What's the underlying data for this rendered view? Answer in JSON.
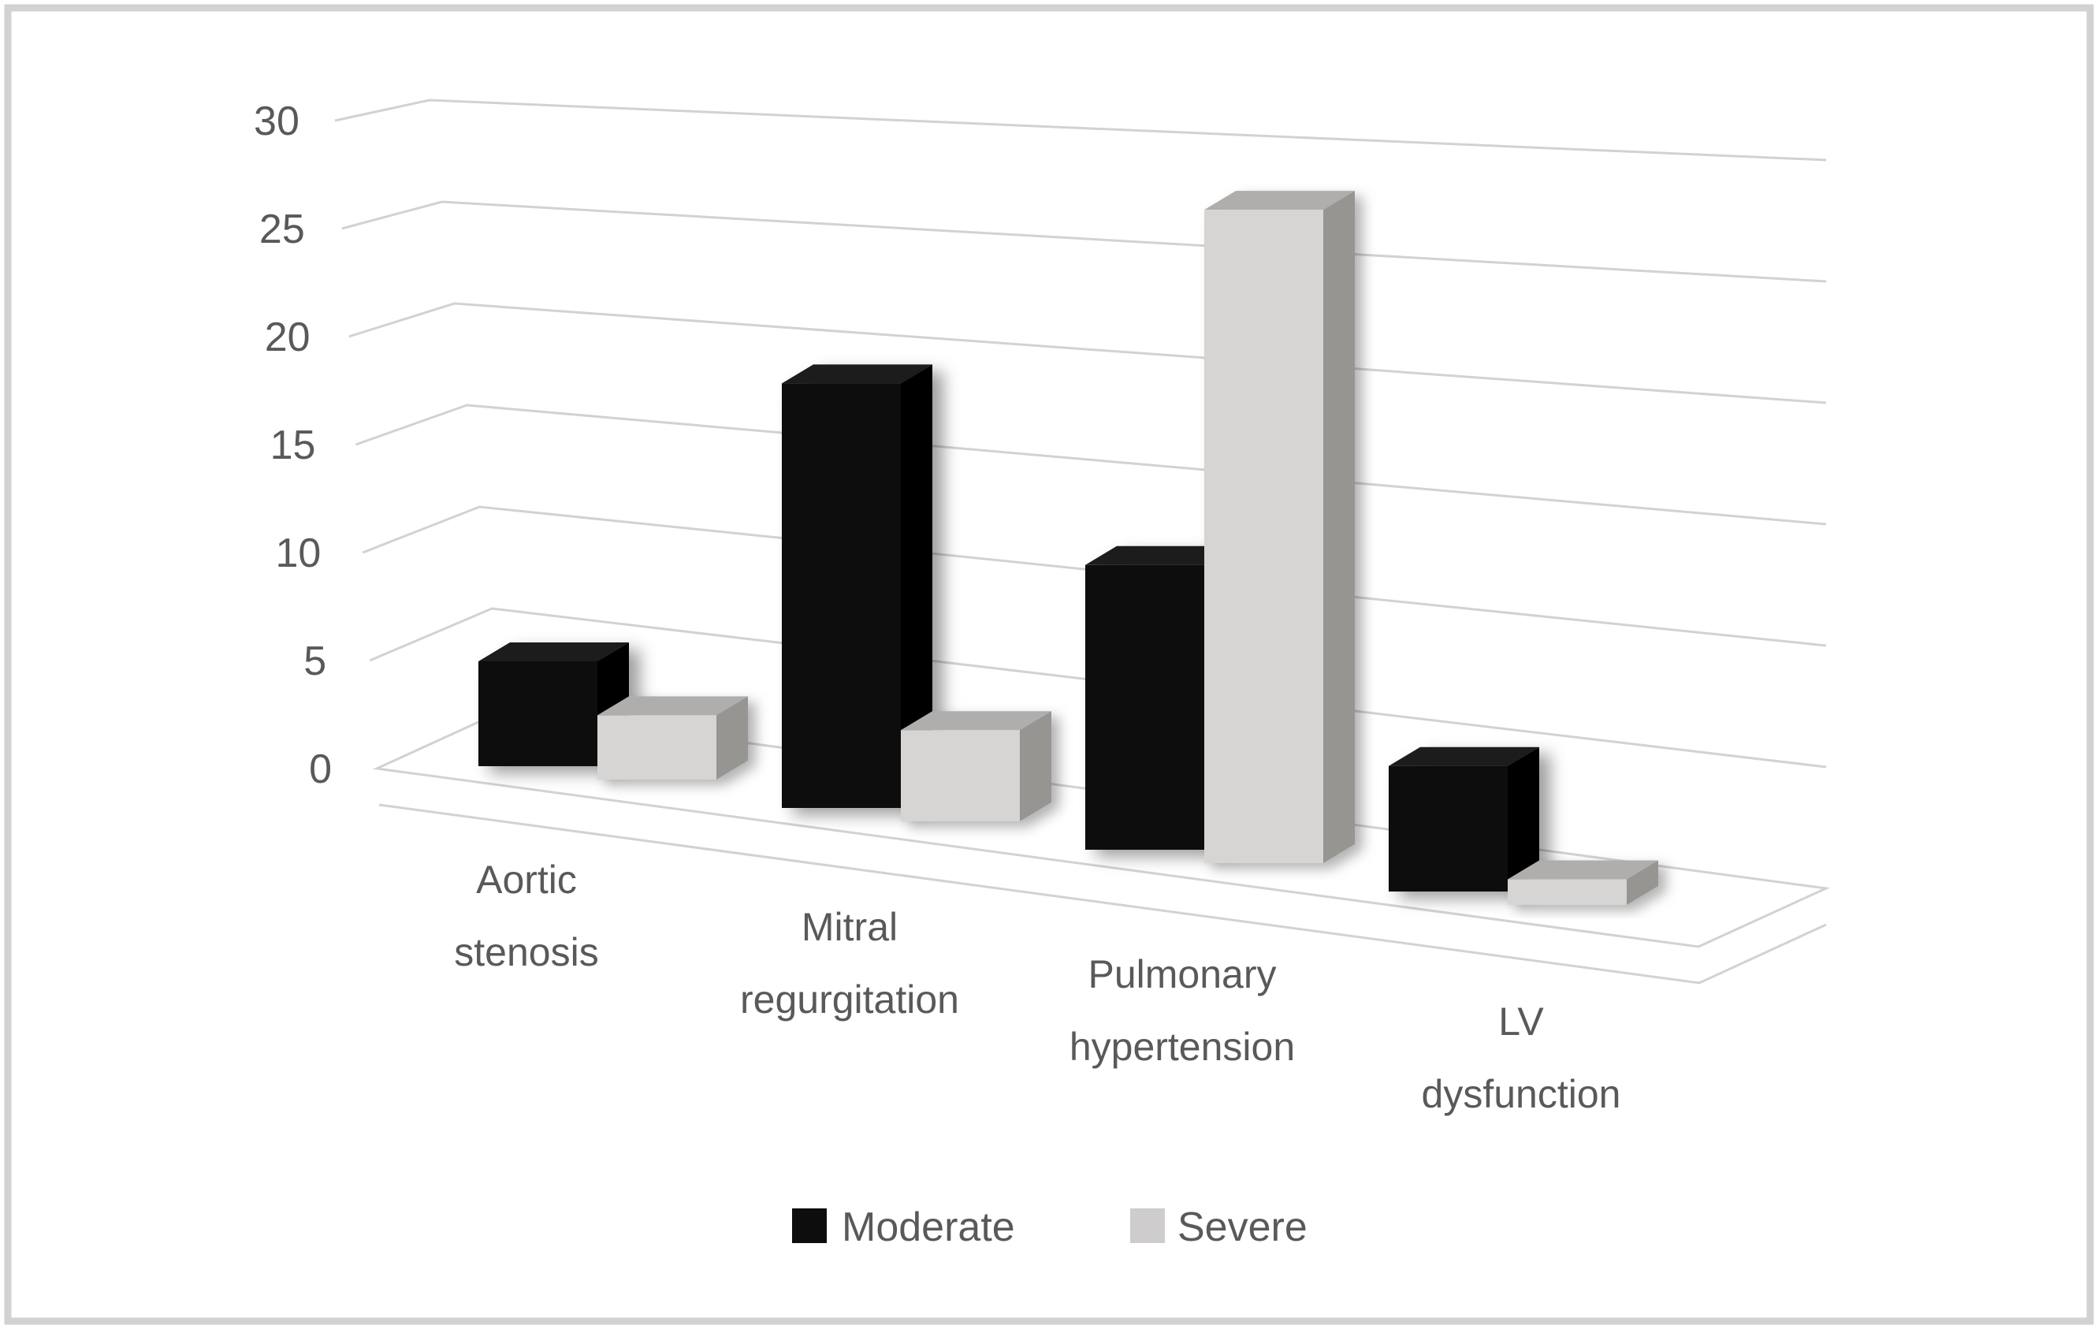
{
  "figure": {
    "background": "#ffffff",
    "border_color": "#d2d2d2",
    "text_color": "#595959",
    "gridline_color": "#d2d2d2"
  },
  "chart_data": {
    "type": "bar",
    "style": "3d-clustered-column",
    "title": "",
    "xlabel": "",
    "ylabel": "",
    "categories": [
      "Aortic stenosis",
      "Mitral regurgitation",
      "Pulmonary hypertension",
      "LV dysfunction"
    ],
    "category_label_lines": [
      [
        "Aortic",
        "stenosis"
      ],
      [
        "Mitral",
        "regurgitation"
      ],
      [
        "Pulmonary",
        "hypertension"
      ],
      [
        "LV",
        "dysfunction"
      ]
    ],
    "series": [
      {
        "name": "Moderate",
        "values": [
          5,
          19,
          12,
          5
        ],
        "color_front": "#0a0a0a",
        "color_top": "#1f1f1f",
        "color_side": "#000000"
      },
      {
        "name": "Severe",
        "values": [
          3,
          4,
          27,
          1
        ],
        "color_front": "#d7d5d3",
        "color_top": "#b0aeac",
        "color_side": "#979592"
      }
    ],
    "ylim": [
      0,
      30
    ],
    "ytick_step": 5,
    "yticks": [
      "0",
      "5",
      "10",
      "15",
      "20",
      "25",
      "30"
    ],
    "grid": true,
    "legend_position": "bottom"
  },
  "legend": {
    "items": [
      {
        "label": "Moderate",
        "swatch": "#0d0d0d"
      },
      {
        "label": "Severe",
        "swatch": "#cecccc"
      }
    ]
  }
}
